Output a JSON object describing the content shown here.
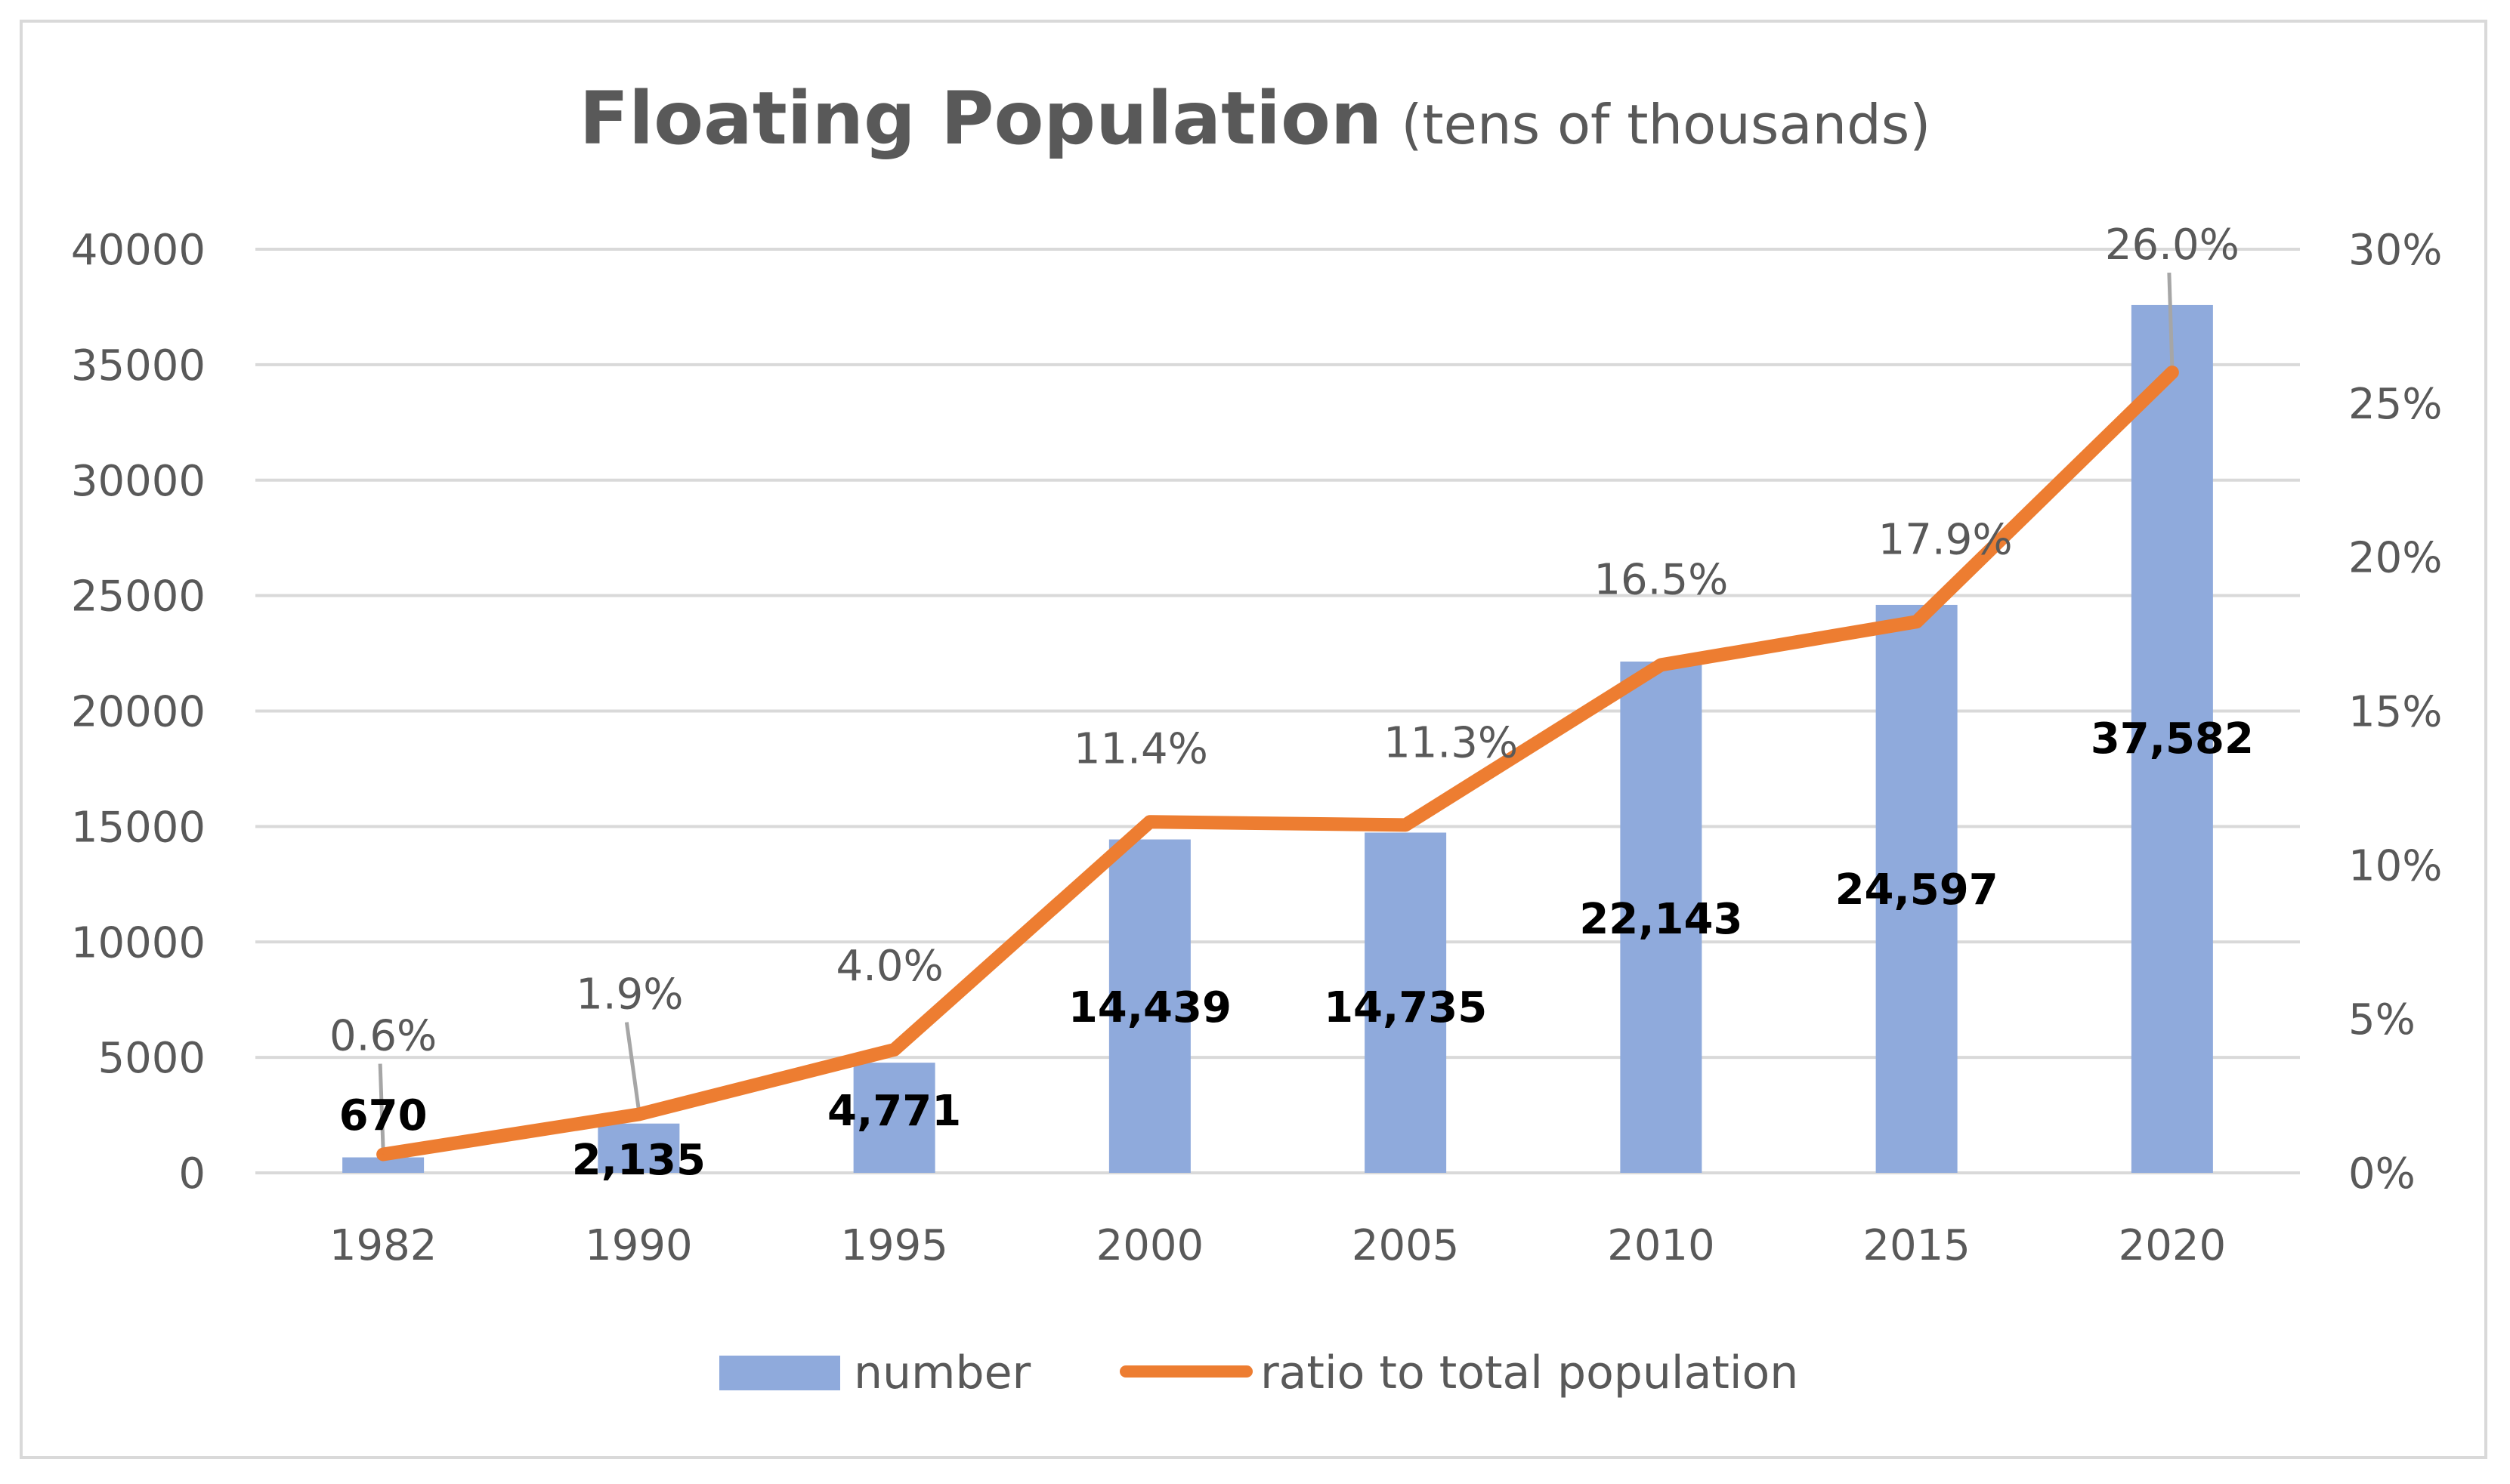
{
  "chart_data": {
    "type": "bar",
    "title": "Floating Population",
    "subtitle": "(tens of thousands)",
    "categories": [
      "1982",
      "1990",
      "1995",
      "2000",
      "2005",
      "2010",
      "2015",
      "2020"
    ],
    "series": [
      {
        "name": "number",
        "type": "bar",
        "axis": "left",
        "values": [
          670,
          2135,
          4771,
          14439,
          14735,
          22143,
          24597,
          37582
        ],
        "labels": [
          "670",
          "2,135",
          "4,771",
          "14,439",
          "14,735",
          "22,143",
          "24,597",
          "37,582"
        ],
        "color": "#8faadc"
      },
      {
        "name": "ratio to total population",
        "type": "line",
        "axis": "right",
        "values": [
          0.6,
          1.9,
          4.0,
          11.4,
          11.3,
          16.5,
          17.9,
          26.0
        ],
        "labels": [
          "0.6%",
          "1.9%",
          "4.0%",
          "11.4%",
          "11.3%",
          "16.5%",
          "17.9%",
          "26.0%"
        ],
        "color": "#ed7d31"
      }
    ],
    "y_left": {
      "min": 0,
      "max": 40000,
      "ticks": [
        "0",
        "5000",
        "10000",
        "15000",
        "20000",
        "25000",
        "30000",
        "35000",
        "40000"
      ]
    },
    "y_right": {
      "min": 0,
      "max": 30,
      "ticks": [
        "0%",
        "5%",
        "10%",
        "15%",
        "20%",
        "25%",
        "30%"
      ]
    },
    "grid": true,
    "legend": "bottom",
    "colors": {
      "gridline": "#d9d9d9",
      "axis": "#d9d9d9",
      "frame": "#d9d9d9",
      "leader": "#a6a6a6"
    }
  }
}
